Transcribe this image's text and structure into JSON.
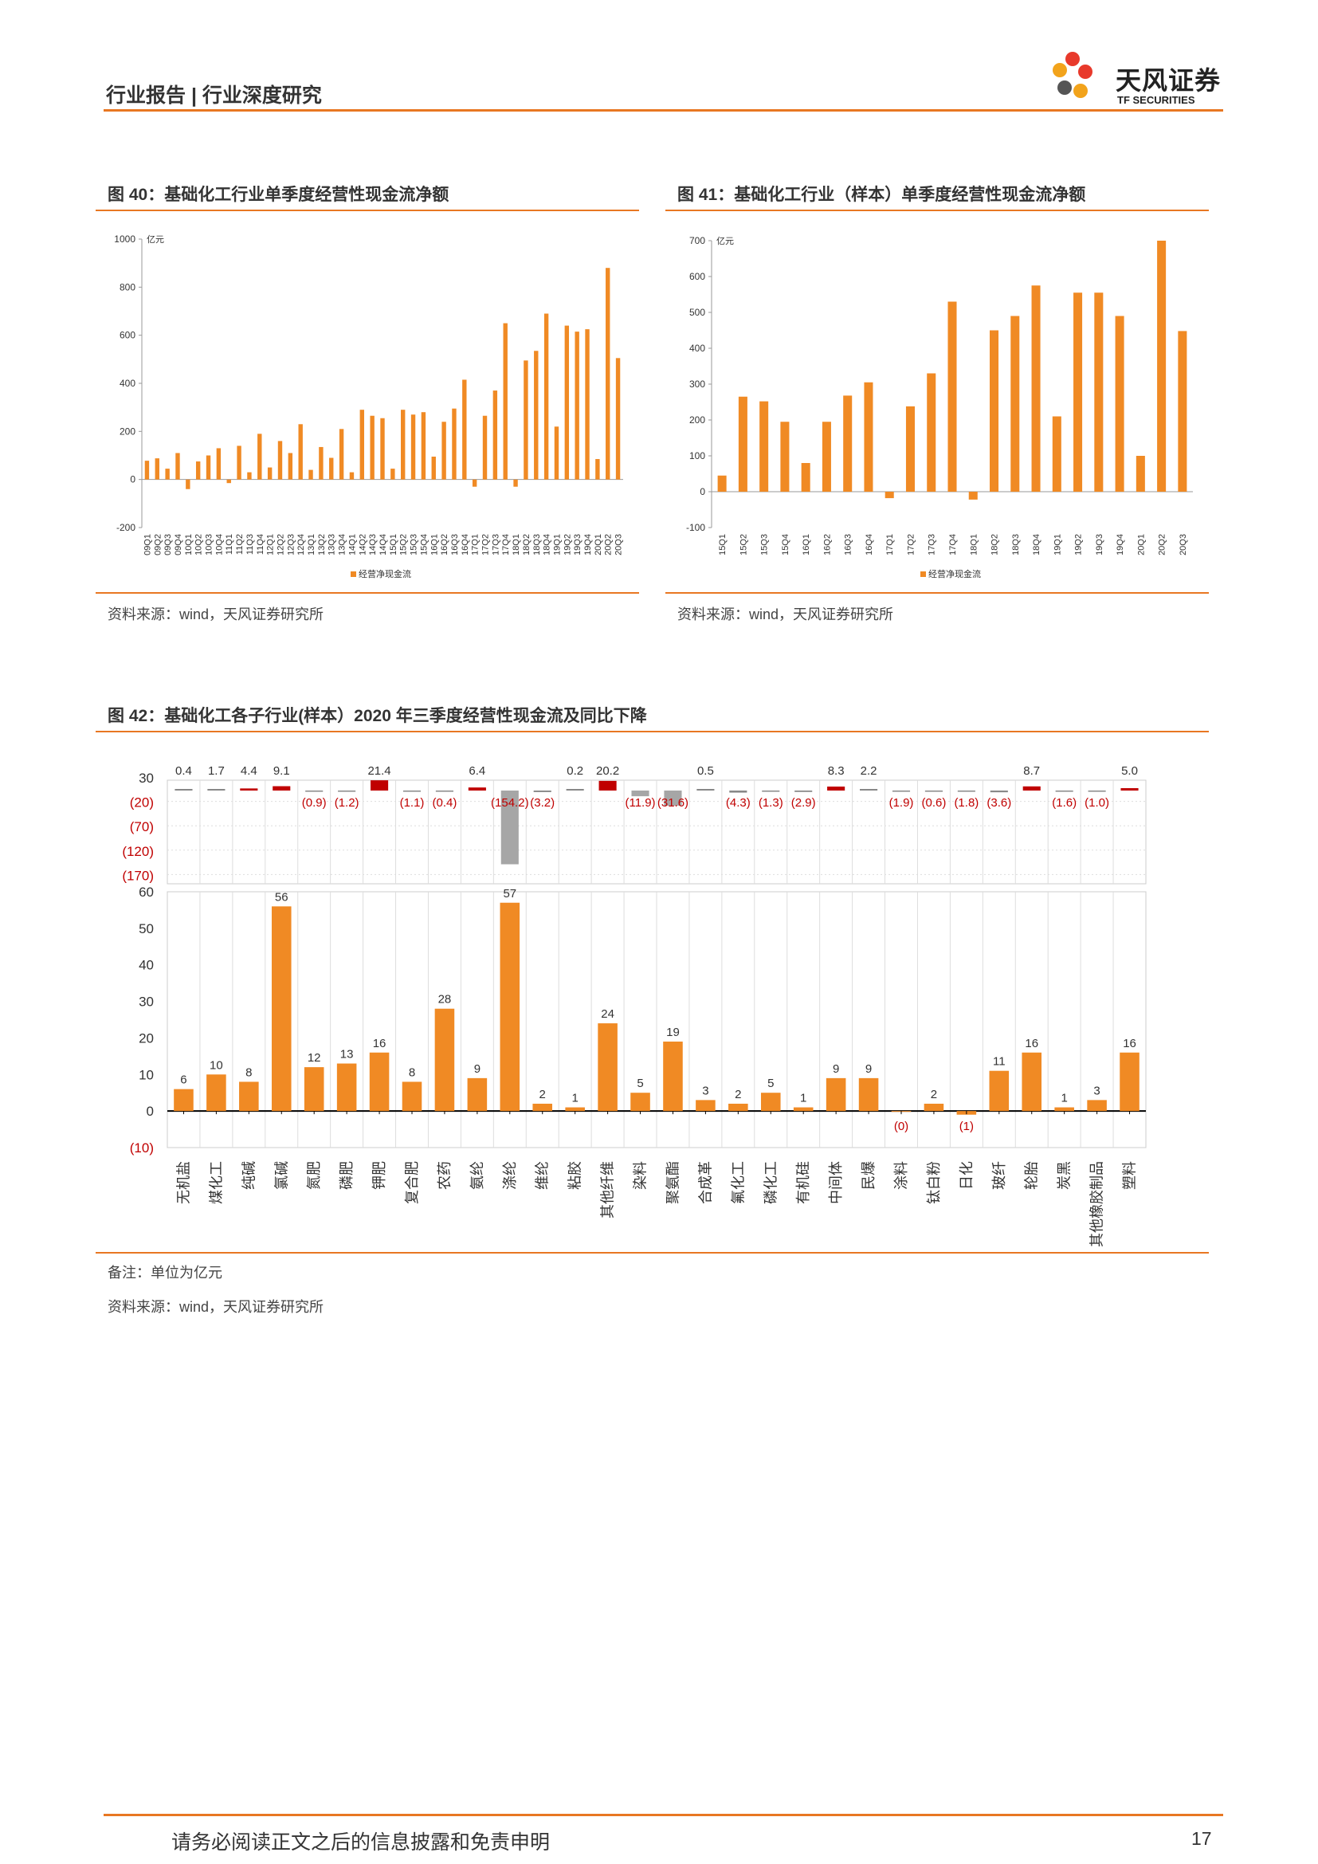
{
  "header": {
    "title": "行业报告 | 行业深度研究",
    "logo_cn": "天风证券",
    "logo_en": "TF SECURITIES"
  },
  "fig40": {
    "title": "图 40：基础化工行业单季度经营性现金流净额",
    "source": "资料来源：wind，天风证券研究所"
  },
  "fig41": {
    "title": "图 41：基础化工行业（样本）单季度经营性现金流净额",
    "source": "资料来源：wind，天风证券研究所"
  },
  "fig42": {
    "title": "图 42：基础化工各子行业(样本）2020 年三季度经营性现金流及同比下降",
    "note": "备注：单位为亿元",
    "source": "资料来源：wind，天风证券研究所"
  },
  "footer": {
    "disclaimer": "请务必阅读正文之后的信息披露和免责申明",
    "page": "17"
  },
  "colors": {
    "accent": "#E87722",
    "bar": "#F08A24",
    "red": "#C00000",
    "gray": "#A6A6A6"
  },
  "chart_data": [
    {
      "type": "bar",
      "unit": "亿元",
      "legend": "经营净现金流",
      "ylim": [
        -200,
        1000
      ],
      "yticks": [
        -200,
        0,
        200,
        400,
        600,
        800,
        1000
      ],
      "categories": [
        "09Q1",
        "09Q2",
        "09Q3",
        "09Q4",
        "10Q1",
        "10Q2",
        "10Q3",
        "10Q4",
        "11Q1",
        "11Q2",
        "11Q3",
        "11Q4",
        "12Q1",
        "12Q2",
        "12Q3",
        "12Q4",
        "13Q1",
        "13Q2",
        "13Q3",
        "13Q4",
        "14Q1",
        "14Q2",
        "14Q3",
        "14Q4",
        "15Q1",
        "15Q2",
        "15Q3",
        "15Q4",
        "16Q1",
        "16Q2",
        "16Q3",
        "16Q4",
        "17Q1",
        "17Q2",
        "17Q3",
        "17Q4",
        "18Q1",
        "18Q2",
        "18Q3",
        "18Q4",
        "19Q1",
        "19Q2",
        "19Q3",
        "19Q4",
        "20Q1",
        "20Q2",
        "20Q3"
      ],
      "values": [
        78,
        88,
        45,
        110,
        -40,
        75,
        100,
        130,
        -15,
        140,
        30,
        190,
        50,
        160,
        110,
        230,
        40,
        135,
        90,
        210,
        30,
        290,
        265,
        255,
        45,
        290,
        270,
        280,
        95,
        240,
        295,
        415,
        -30,
        265,
        370,
        650,
        -30,
        495,
        535,
        690,
        220,
        640,
        615,
        625,
        85,
        880,
        505
      ]
    },
    {
      "type": "bar",
      "unit": "亿元",
      "legend": "经营净现金流",
      "ylim": [
        -100,
        700
      ],
      "yticks": [
        -100,
        0,
        100,
        200,
        300,
        400,
        500,
        600,
        700
      ],
      "categories": [
        "15Q1",
        "15Q2",
        "15Q3",
        "15Q4",
        "16Q1",
        "16Q2",
        "16Q3",
        "16Q4",
        "17Q1",
        "17Q2",
        "17Q3",
        "17Q4",
        "18Q1",
        "18Q2",
        "18Q3",
        "18Q4",
        "19Q1",
        "19Q2",
        "19Q3",
        "19Q4",
        "20Q1",
        "20Q2",
        "20Q3"
      ],
      "values": [
        45,
        265,
        252,
        195,
        80,
        195,
        268,
        305,
        -18,
        238,
        330,
        530,
        -22,
        450,
        490,
        575,
        210,
        555,
        555,
        490,
        100,
        700,
        448
      ]
    },
    {
      "type": "bar",
      "categories": [
        "无机盐",
        "煤化工",
        "纯碱",
        "氯碱",
        "氮肥",
        "磷肥",
        "钾肥",
        "复合肥",
        "农药",
        "氨纶",
        "涤纶",
        "维纶",
        "粘胶",
        "其他纤维",
        "染料",
        "聚氨酯",
        "合成革",
        "氟化工",
        "磷化工",
        "有机硅",
        "中间体",
        "民爆",
        "涂料",
        "钛白粉",
        "日化",
        "玻纤",
        "轮胎",
        "炭黑",
        "其他橡胶制品",
        "塑料"
      ],
      "series": [
        {
          "values": [
            6,
            10,
            8,
            56,
            12,
            13,
            16,
            8,
            28,
            9,
            57,
            2,
            1,
            24,
            5,
            19,
            3,
            2,
            5,
            1,
            9,
            9,
            0,
            2,
            -1,
            11,
            16,
            1,
            3,
            16
          ],
          "labels": [
            "6",
            "10",
            "8",
            "56",
            "12",
            "13",
            "16",
            "8",
            "28",
            "9",
            "57",
            "2",
            "1",
            "24",
            "5",
            "19",
            "3",
            "2",
            "5",
            "1",
            "9",
            "9",
            "(0)",
            "2",
            "(1)",
            "11",
            "16",
            "1",
            "3",
            "16"
          ]
        },
        {
          "values": [
            0.4,
            1.7,
            4.4,
            9.1,
            -0.9,
            -1.2,
            21.4,
            -1.1,
            -0.4,
            6.4,
            -154.2,
            -3.2,
            0.2,
            20.2,
            -11.9,
            -31.6,
            0.5,
            -4.3,
            -1.3,
            -2.9,
            8.3,
            2.2,
            -1.9,
            -0.6,
            -1.8,
            -3.6,
            8.7,
            -1.6,
            -1.0,
            5.0
          ],
          "labels": [
            "0.4",
            "1.7",
            "4.4",
            "9.1",
            "(0.9)",
            "(1.2)",
            "21.4",
            "(1.1)",
            "(0.4)",
            "6.4",
            "(154.2)",
            "(3.2)",
            "0.2",
            "20.2",
            "(11.9)",
            "(31.6)",
            "0.5",
            "(4.3)",
            "(1.3)",
            "(2.9)",
            "8.3",
            "2.2",
            "(1.9)",
            "(0.6)",
            "(1.8)",
            "(3.6)",
            "8.7",
            "(1.6)",
            "(1.0)",
            "5.0"
          ]
        }
      ],
      "top_yticks": [
        "30",
        "(20)",
        "(70)",
        "(120)",
        "(170)"
      ],
      "top_ylim": [
        -170,
        30
      ],
      "bottom_yticks": [
        "60",
        "50",
        "40",
        "30",
        "20",
        "10",
        "0",
        "(10)"
      ],
      "bottom_ylim": [
        -10,
        60
      ]
    }
  ]
}
